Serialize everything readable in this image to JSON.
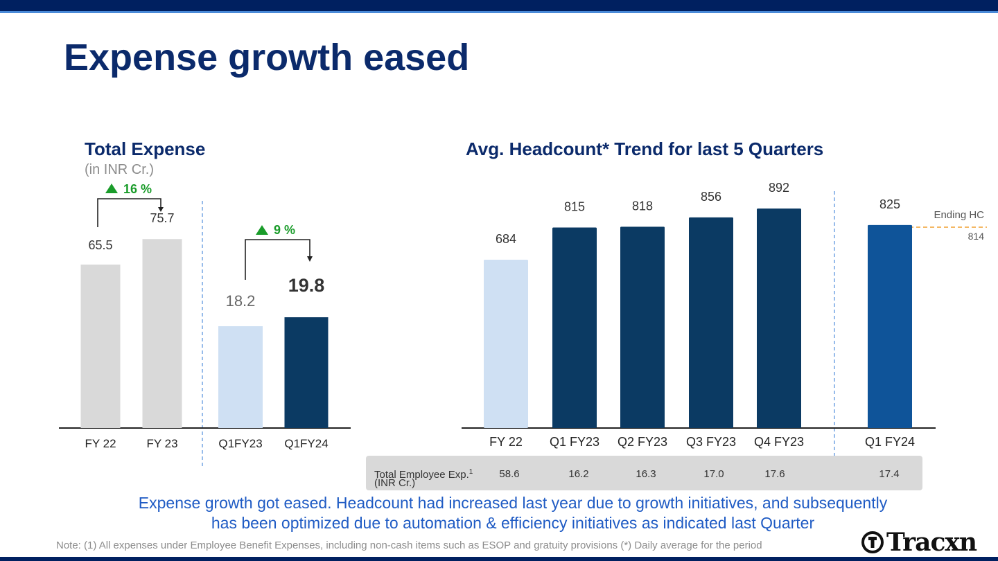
{
  "title": "Expense growth eased",
  "left_chart": {
    "title": "Total Expense",
    "subtitle": "(in INR Cr.)",
    "growth_annual": "16 %",
    "growth_quarter": "9 %"
  },
  "right_chart": {
    "title": "Avg. Headcount* Trend for last 5 Quarters",
    "ending_label": "Ending HC",
    "ending_value": "814"
  },
  "table": {
    "label_line1": "Total Employee Exp.",
    "label_sup": "1",
    "label_line2": "(INR Cr.)",
    "values": [
      "58.6",
      "16.2",
      "16.3",
      "17.0",
      "17.6",
      "17.4"
    ]
  },
  "summary_line1": "Expense growth got eased. Headcount had increased last year due to growth initiatives, and subsequently",
  "summary_line2": "has been optimized due to automation & efficiency initiatives as indicated last Quarter",
  "note": "Note: (1) All expenses under Employee Benefit Expenses, including non-cash items such as ESOP and gratuity provisions  (*) Daily average for the period",
  "logo_text": "Tracxn",
  "colors": {
    "navy": "#0b3a63",
    "light_blue": "#cfe0f3",
    "grey": "#d9d9d9",
    "green": "#1a9c2a",
    "q1fy24_blue": "#0f5499",
    "title": "#0b2a6b"
  },
  "chart_data": [
    {
      "type": "bar",
      "title": "Total Expense",
      "ylabel": "(in INR Cr.)",
      "categories": [
        "FY 22",
        "FY 23",
        "Q1FY23",
        "Q1FY24"
      ],
      "values": [
        65.5,
        75.7,
        18.2,
        19.8
      ],
      "labels": [
        "65.5",
        "75.7",
        "18.2",
        "19.8"
      ],
      "annotations": [
        {
          "from": "FY 22",
          "to": "FY 23",
          "text": "16 %"
        },
        {
          "from": "Q1FY23",
          "to": "Q1FY24",
          "text": "9 %"
        }
      ]
    },
    {
      "type": "bar",
      "title": "Avg. Headcount* Trend for last 5 Quarters",
      "categories": [
        "FY 22",
        "Q1 FY23",
        "Q2 FY23",
        "Q3 FY23",
        "Q4 FY23",
        "Q1 FY24"
      ],
      "values": [
        684,
        815,
        818,
        856,
        892,
        825
      ],
      "labels": [
        "684",
        "815",
        "818",
        "856",
        "892",
        "825"
      ],
      "reference_line": {
        "label": "Ending HC",
        "value": 814
      }
    }
  ]
}
